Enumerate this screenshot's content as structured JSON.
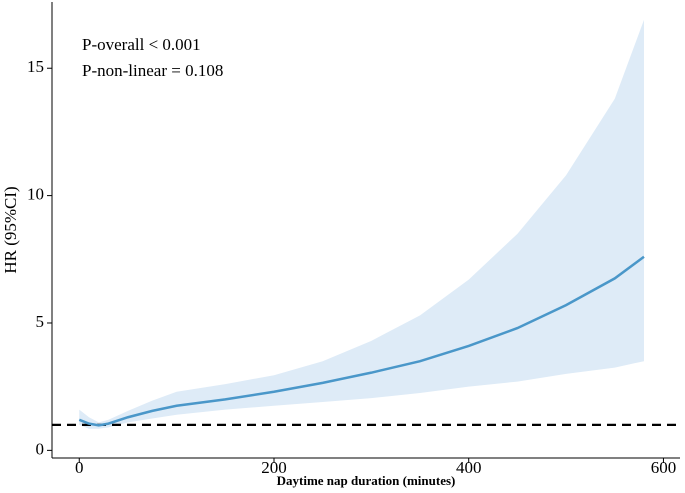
{
  "chart_data": {
    "type": "line",
    "xlabel": "Daytime nap duration (minutes)",
    "ylabel": "HR (95%CI)",
    "annotations": [
      "P-overall < 0.001",
      "P-non-linear = 0.108"
    ],
    "x": [
      0,
      10,
      20,
      30,
      50,
      75,
      100,
      150,
      200,
      250,
      300,
      350,
      400,
      450,
      500,
      550,
      580
    ],
    "values": [
      1.2,
      1.05,
      0.98,
      1.05,
      1.3,
      1.55,
      1.75,
      2.0,
      2.3,
      2.65,
      3.05,
      3.5,
      4.1,
      4.8,
      5.7,
      6.75,
      7.6
    ],
    "lower": [
      1.0,
      0.85,
      0.85,
      0.9,
      1.1,
      1.25,
      1.4,
      1.6,
      1.75,
      1.9,
      2.05,
      2.25,
      2.5,
      2.7,
      3.0,
      3.25,
      3.5
    ],
    "upper": [
      1.6,
      1.3,
      1.1,
      1.2,
      1.55,
      1.95,
      2.3,
      2.6,
      2.95,
      3.5,
      4.3,
      5.3,
      6.7,
      8.5,
      10.8,
      13.8,
      16.9
    ],
    "color": "#4a97c9",
    "band_color": "#deebf7",
    "hline": 1,
    "xlim": [
      -28,
      617
    ],
    "ylim": [
      -0.3,
      17.6
    ],
    "xticks": [
      0,
      200,
      400,
      600
    ],
    "yticks": [
      0,
      5,
      10,
      15
    ]
  }
}
